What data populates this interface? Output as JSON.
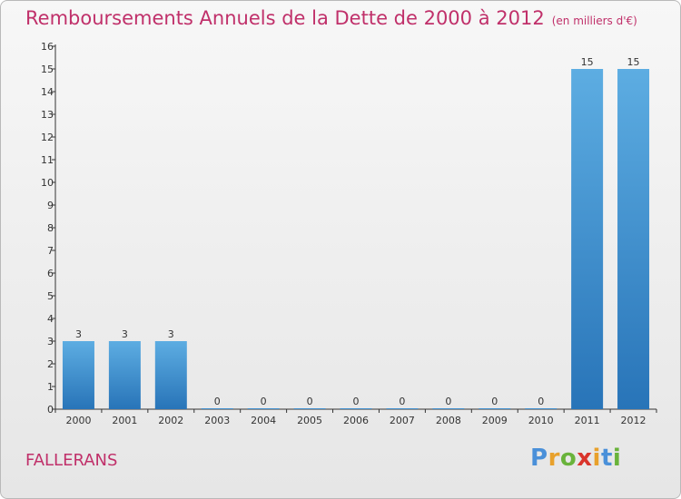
{
  "header": {
    "title": "Remboursements Annuels de la Dette de 2000 à 2012",
    "subtitle": "(en milliers d'€)"
  },
  "footer": {
    "commune": "FALLERANS",
    "logo_text": "Proxiti"
  },
  "colors": {
    "title": "#c0306a",
    "bar_top": "#5dade2",
    "bar_bottom": "#2874b8",
    "axis": "#333333"
  },
  "chart_data": {
    "type": "bar",
    "title": "Remboursements Annuels de la Dette de 2000 à 2012",
    "subtitle": "(en milliers d'€)",
    "categories": [
      "2000",
      "2001",
      "2002",
      "2003",
      "2004",
      "2005",
      "2006",
      "2007",
      "2008",
      "2009",
      "2010",
      "2011",
      "2012"
    ],
    "values": [
      3,
      3,
      3,
      0,
      0,
      0,
      0,
      0,
      0,
      0,
      0,
      15,
      15
    ],
    "data_labels": [
      "3",
      "3",
      "3",
      "0",
      "0",
      "0",
      "0",
      "0",
      "0",
      "0",
      "0",
      "15",
      "15"
    ],
    "yticks": [
      0,
      1,
      2,
      3,
      4,
      5,
      6,
      7,
      8,
      9,
      10,
      11,
      12,
      13,
      14,
      15,
      16
    ],
    "ylim": [
      0,
      16
    ],
    "xlabel": "",
    "ylabel": "",
    "grid": false,
    "legend": "none"
  }
}
